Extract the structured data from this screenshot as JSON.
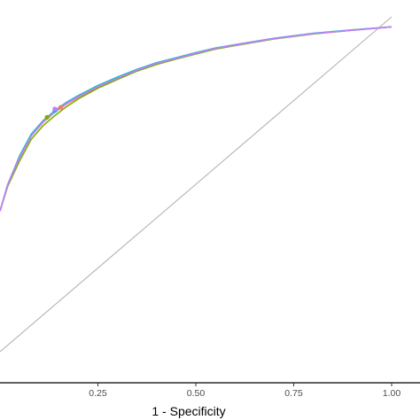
{
  "chart_data": {
    "type": "line",
    "xlabel": "1 - Specificity",
    "xlim": [
      0,
      1.05
    ],
    "ylim": [
      0,
      1.05
    ],
    "x_ticks": [
      {
        "value": 0.25,
        "label": "0.25"
      },
      {
        "value": 0.5,
        "label": "0.50"
      },
      {
        "value": 0.75,
        "label": "0.75"
      },
      {
        "value": 1.0,
        "label": "1.00"
      }
    ],
    "grid": false,
    "legend": "none",
    "reference_line": {
      "x": [
        0,
        1
      ],
      "y": [
        0,
        1
      ],
      "color": "#b3b3b3"
    },
    "series": [
      {
        "color": "#F8766D",
        "x": [
          0,
          0.02,
          0.05,
          0.08,
          0.11,
          0.14,
          0.17,
          0.2,
          0.25,
          0.3,
          0.35,
          0.4,
          0.45,
          0.5,
          0.55,
          0.6,
          0.7,
          0.8,
          0.9,
          1.0
        ],
        "y": [
          0.42,
          0.5,
          0.58,
          0.645,
          0.685,
          0.715,
          0.74,
          0.76,
          0.79,
          0.815,
          0.84,
          0.86,
          0.875,
          0.89,
          0.905,
          0.915,
          0.935,
          0.95,
          0.96,
          0.97
        ],
        "point": [
          0.155,
          0.73
        ]
      },
      {
        "color": "#7CAE00",
        "x": [
          0,
          0.02,
          0.05,
          0.08,
          0.11,
          0.14,
          0.17,
          0.2,
          0.25,
          0.3,
          0.35,
          0.4,
          0.45,
          0.5,
          0.55,
          0.6,
          0.7,
          0.8,
          0.9,
          1.0
        ],
        "y": [
          0.42,
          0.495,
          0.57,
          0.635,
          0.675,
          0.705,
          0.732,
          0.755,
          0.787,
          0.813,
          0.838,
          0.858,
          0.874,
          0.889,
          0.904,
          0.914,
          0.934,
          0.949,
          0.96,
          0.97
        ],
        "point": [
          0.12,
          0.7
        ]
      },
      {
        "color": "#00BFC4",
        "x": [
          0,
          0.02,
          0.05,
          0.08,
          0.11,
          0.14,
          0.17,
          0.2,
          0.25,
          0.3,
          0.35,
          0.4,
          0.45,
          0.5,
          0.55,
          0.6,
          0.7,
          0.8,
          0.9,
          1.0
        ],
        "y": [
          0.42,
          0.5,
          0.585,
          0.65,
          0.69,
          0.72,
          0.745,
          0.765,
          0.795,
          0.82,
          0.843,
          0.863,
          0.878,
          0.893,
          0.907,
          0.917,
          0.936,
          0.951,
          0.961,
          0.97
        ],
        "point": [
          0.14,
          0.72
        ]
      },
      {
        "color": "#C77CFF",
        "x": [
          0,
          0.02,
          0.05,
          0.08,
          0.11,
          0.14,
          0.17,
          0.2,
          0.25,
          0.3,
          0.35,
          0.4,
          0.45,
          0.5,
          0.55,
          0.6,
          0.7,
          0.8,
          0.9,
          1.0
        ],
        "y": [
          0.42,
          0.5,
          0.58,
          0.645,
          0.687,
          0.717,
          0.742,
          0.762,
          0.792,
          0.817,
          0.841,
          0.861,
          0.876,
          0.891,
          0.906,
          0.916,
          0.935,
          0.95,
          0.96,
          0.97
        ],
        "point": [
          0.14,
          0.725
        ]
      }
    ]
  }
}
